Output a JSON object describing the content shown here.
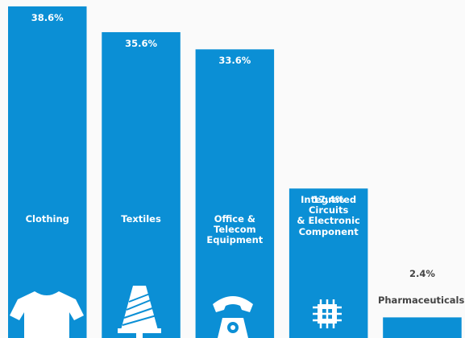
{
  "chart_data": {
    "type": "bar",
    "categories": [
      "Clothing",
      "Textiles",
      "Office &\nTelecom\nEquipment",
      "Integrated\nCircuits\n& Electronic\nComponent",
      "Pharmaceuticals"
    ],
    "values": [
      38.6,
      35.6,
      33.6,
      17.4,
      2.4
    ],
    "value_labels": [
      "38.6%",
      "35.6%",
      "33.6%",
      "17.4%",
      "2.4%"
    ],
    "color": "#0b8fd5",
    "ylim": [
      0,
      40
    ]
  }
}
